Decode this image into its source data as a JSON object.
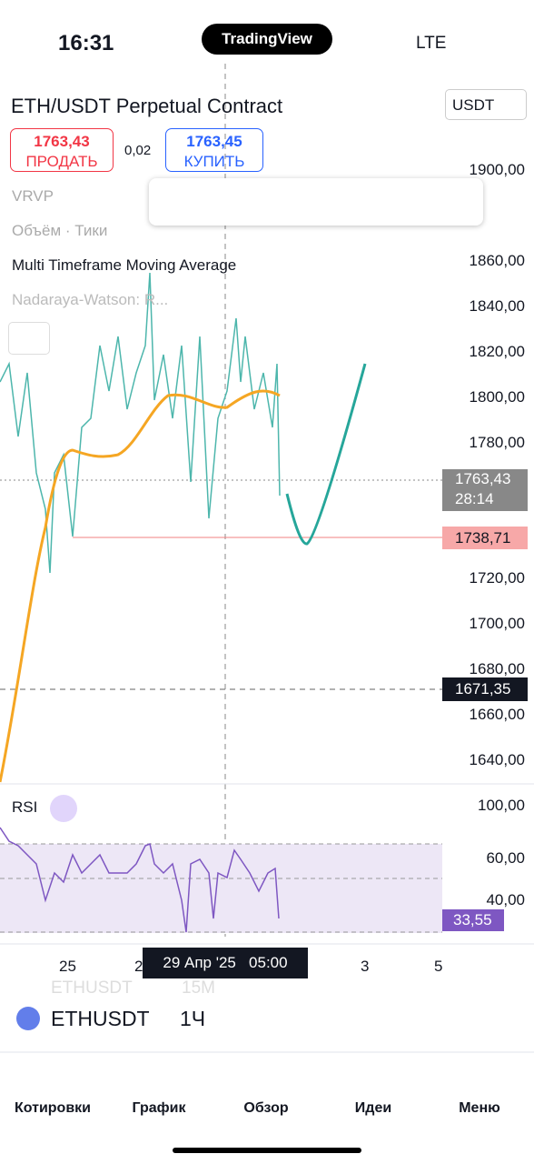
{
  "status": {
    "time": "16:31",
    "brand": "TradingView",
    "network": "LTE"
  },
  "header": {
    "symbol": "ETH/USDT Perpetual Contract",
    "currency": "USDT",
    "sell_price": "1763,43",
    "sell_label": "ПРОДАТЬ",
    "spread": "0,02",
    "buy_price": "1763,45",
    "buy_label": "КУПИТЬ"
  },
  "indicators": [
    "VRVP",
    "Объём · Тики",
    "Multi Timeframe Moving Average",
    "Nadaraya-Watson: R..."
  ],
  "price_axis": [
    "1900,00",
    "1860,00",
    "1840,00",
    "1820,00",
    "1800,00",
    "1780,00",
    "1720,00",
    "1700,00",
    "1680,00",
    "1660,00",
    "1640,00"
  ],
  "price_labels": {
    "current": "1763,43",
    "countdown": "28:14",
    "level": "1738,71",
    "cursor": "1671,35"
  },
  "rsi": {
    "label": "RSI",
    "ticks": [
      "100,00",
      "60,00",
      "40,00"
    ],
    "value": "33,55"
  },
  "time_axis": {
    "ticks": [
      "25",
      "2",
      "3",
      "5"
    ],
    "cursor": "29 Апр '25   05:00"
  },
  "toolbar": {
    "symbol": "ETHUSDT",
    "interval": "1Ч",
    "ghost_symbol": "ETHUSDT",
    "ghost_interval": "15М"
  },
  "nav": [
    "Котировки",
    "График",
    "Обзор",
    "Идеи",
    "Меню"
  ]
}
